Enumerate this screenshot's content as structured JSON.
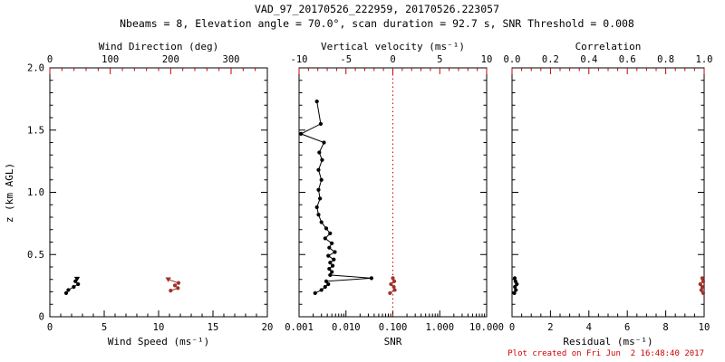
{
  "title": "VAD_97_20170526_222959, 20170526.223057",
  "subtitle": "Nbeams = 8, Elevation angle = 70.0°, scan duration = 92.7 s, SNR Threshold = 0.008",
  "footer": "Plot created on Fri Jun  2 16:48:40 2017",
  "colors": {
    "black": "#000000",
    "axis_red": "#cc0000",
    "data_red": "#a03328",
    "background": "#ffffff"
  },
  "chart_data": [
    {
      "type": "scatter",
      "name": "wind-panel",
      "ylabel": "z (km AGL)",
      "y_axis": {
        "range": [
          0,
          2
        ],
        "ticks": {
          "values": [
            0,
            0.5,
            1,
            1.5,
            2
          ],
          "labels": [
            "0",
            "0.5",
            "1.0",
            "1.5",
            "2.0"
          ]
        },
        "minor_step": 0.1,
        "show_labels": true
      },
      "bottom_axis": {
        "label": "Wind Speed (ms⁻¹)",
        "range": [
          0,
          20
        ],
        "ticks": {
          "values": [
            0,
            5,
            10,
            15,
            20
          ],
          "labels": [
            "0",
            "5",
            "10",
            "15",
            "20"
          ]
        },
        "minor_step": 1,
        "color": "black"
      },
      "top_axis": {
        "label": "Wind Direction (deg)",
        "range": [
          0,
          360
        ],
        "ticks": {
          "values": [
            0,
            100,
            200,
            300
          ],
          "labels": [
            "0",
            "100",
            "200",
            "300"
          ]
        },
        "minor_step": 20,
        "color": "red"
      },
      "series": [
        {
          "name": "wind-speed",
          "axis": "bottom",
          "color": "black",
          "marker": "circle",
          "end_marker": "triangle-down",
          "points": [
            [
              1.5,
              0.19
            ],
            [
              1.7,
              0.215
            ],
            [
              2.2,
              0.24
            ],
            [
              2.6,
              0.262
            ],
            [
              2.35,
              0.285
            ],
            [
              2.5,
              0.305
            ]
          ]
        },
        {
          "name": "wind-direction",
          "axis": "top",
          "color": "red",
          "marker": "circle",
          "end_marker": "triangle-down",
          "points": [
            [
              200,
              0.21
            ],
            [
              212,
              0.23
            ],
            [
              207,
              0.252
            ],
            [
              213,
              0.272
            ],
            [
              196,
              0.3
            ]
          ]
        }
      ]
    },
    {
      "type": "scatter",
      "name": "snr-panel",
      "ylabel": "",
      "y_axis": {
        "range": [
          0,
          2
        ],
        "ticks": {
          "values": [
            0,
            0.5,
            1,
            1.5,
            2
          ],
          "labels": [
            "",
            "",
            "",
            "",
            ""
          ]
        },
        "minor_step": 0.1,
        "show_labels": false
      },
      "bottom_axis": {
        "label": "SNR",
        "scale": "log",
        "range": [
          0.001,
          10
        ],
        "ticks": {
          "values": [
            0.001,
            0.01,
            0.1,
            1,
            10
          ],
          "labels": [
            "0.001",
            "0.010",
            "0.100",
            "1.000",
            "10.000"
          ]
        },
        "color": "black"
      },
      "top_axis": {
        "label": "Vertical velocity (ms⁻¹)",
        "range": [
          -10,
          10
        ],
        "ticks": {
          "values": [
            -10,
            -5,
            0,
            5,
            10
          ],
          "labels": [
            "-10",
            "-5",
            "0",
            "5",
            "10"
          ]
        },
        "minor_step": 1,
        "color": "red"
      },
      "ref_line": {
        "axis": "top",
        "value": 0,
        "color": "red",
        "style": "dotted"
      },
      "series": [
        {
          "name": "snr-profile",
          "axis": "bottom",
          "color": "black",
          "marker": "circle",
          "points": [
            [
              0.0022,
              0.19
            ],
            [
              0.003,
              0.215
            ],
            [
              0.0036,
              0.24
            ],
            [
              0.0042,
              0.262
            ],
            [
              0.0038,
              0.285
            ],
            [
              0.035,
              0.31
            ],
            [
              0.0046,
              0.335
            ],
            [
              0.005,
              0.36
            ],
            [
              0.0044,
              0.385
            ],
            [
              0.0052,
              0.41
            ],
            [
              0.0046,
              0.435
            ],
            [
              0.0055,
              0.46
            ],
            [
              0.0042,
              0.49
            ],
            [
              0.0058,
              0.52
            ],
            [
              0.0044,
              0.555
            ],
            [
              0.005,
              0.59
            ],
            [
              0.0036,
              0.63
            ],
            [
              0.0046,
              0.67
            ],
            [
              0.0038,
              0.71
            ],
            [
              0.003,
              0.76
            ],
            [
              0.0026,
              0.82
            ],
            [
              0.0024,
              0.88
            ],
            [
              0.0028,
              0.95
            ],
            [
              0.0026,
              1.02
            ],
            [
              0.003,
              1.1
            ],
            [
              0.0026,
              1.18
            ],
            [
              0.0031,
              1.26
            ],
            [
              0.0027,
              1.32
            ],
            [
              0.0034,
              1.4
            ],
            [
              0.0011,
              1.47
            ],
            [
              0.0029,
              1.55
            ],
            [
              0.0024,
              1.73
            ]
          ]
        },
        {
          "name": "vertical-velocity",
          "axis": "top",
          "color": "red",
          "marker": "circle",
          "points": [
            [
              -0.3,
              0.19
            ],
            [
              0.2,
              0.215
            ],
            [
              0.1,
              0.24
            ],
            [
              -0.2,
              0.262
            ],
            [
              0.15,
              0.285
            ],
            [
              0.0,
              0.31
            ]
          ]
        }
      ]
    },
    {
      "type": "scatter",
      "name": "residual-panel",
      "ylabel": "",
      "y_axis": {
        "range": [
          0,
          2
        ],
        "ticks": {
          "values": [
            0,
            0.5,
            1,
            1.5,
            2
          ],
          "labels": [
            "",
            "",
            "",
            "",
            ""
          ]
        },
        "minor_step": 0.1,
        "show_labels": false
      },
      "bottom_axis": {
        "label": "Residual (ms⁻¹)",
        "range": [
          0,
          10
        ],
        "ticks": {
          "values": [
            0,
            2,
            4,
            6,
            8,
            10
          ],
          "labels": [
            "0",
            "2",
            "4",
            "6",
            "8",
            "10"
          ]
        },
        "minor_step": 0.5,
        "color": "black"
      },
      "top_axis": {
        "label": "Correlation",
        "range": [
          0,
          1
        ],
        "ticks": {
          "values": [
            0,
            0.2,
            0.4,
            0.6,
            0.8,
            1
          ],
          "labels": [
            "0.0",
            "0.2",
            "0.4",
            "0.6",
            "0.8",
            "1.0"
          ]
        },
        "minor_step": 0.05,
        "color": "red"
      },
      "series": [
        {
          "name": "residual",
          "axis": "bottom",
          "color": "black",
          "marker": "circle",
          "points": [
            [
              0.12,
              0.19
            ],
            [
              0.2,
              0.215
            ],
            [
              0.15,
              0.24
            ],
            [
              0.25,
              0.262
            ],
            [
              0.18,
              0.285
            ],
            [
              0.14,
              0.31
            ]
          ]
        },
        {
          "name": "correlation",
          "axis": "top",
          "color": "red",
          "marker": "circle",
          "points": [
            [
              0.995,
              0.19
            ],
            [
              0.985,
              0.215
            ],
            [
              0.99,
              0.24
            ],
            [
              0.98,
              0.262
            ],
            [
              0.995,
              0.285
            ],
            [
              0.99,
              0.31
            ]
          ]
        }
      ]
    }
  ]
}
